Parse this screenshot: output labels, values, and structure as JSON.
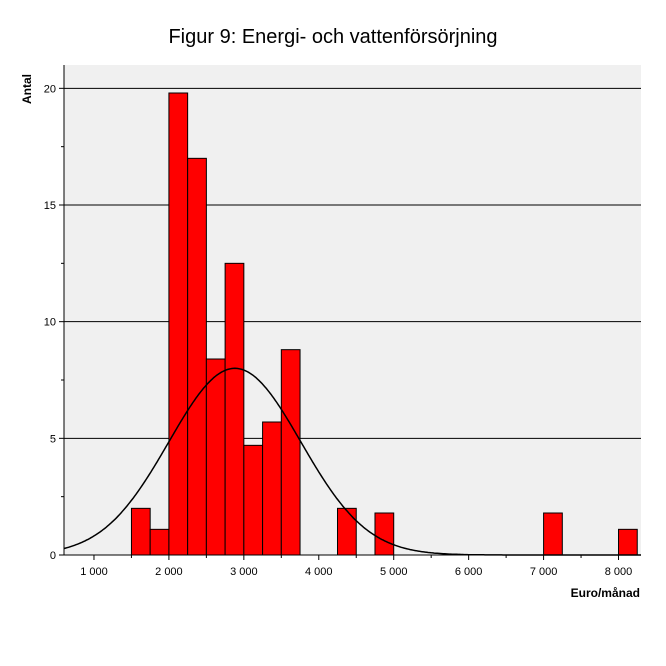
{
  "chart_data": {
    "type": "bar",
    "title": "Figur 9: Energi- och vattenförsörjning",
    "xlabel": "Euro/månad",
    "ylabel": "Antal",
    "xlim": [
      600,
      8300
    ],
    "ylim": [
      0,
      21
    ],
    "x_ticks": [
      1000,
      2000,
      3000,
      4000,
      5000,
      6000,
      7000,
      8000
    ],
    "x_tick_labels": [
      "1 000",
      "2 000",
      "3 000",
      "4 000",
      "5 000",
      "6 000",
      "7 000",
      "8 000"
    ],
    "y_ticks": [
      0,
      5,
      10,
      15,
      20
    ],
    "y_tick_labels": [
      "0",
      "5",
      "10",
      "15",
      "20"
    ],
    "bin_width": 250,
    "bins": [
      {
        "start": 1500,
        "count": 2
      },
      {
        "start": 1750,
        "count": 1.1
      },
      {
        "start": 2000,
        "count": 19.8
      },
      {
        "start": 2250,
        "count": 17
      },
      {
        "start": 2500,
        "count": 8.4
      },
      {
        "start": 2750,
        "count": 12.5
      },
      {
        "start": 3000,
        "count": 4.7
      },
      {
        "start": 3250,
        "count": 5.7
      },
      {
        "start": 3500,
        "count": 8.8
      },
      {
        "start": 4250,
        "count": 2
      },
      {
        "start": 4750,
        "count": 1.8
      },
      {
        "start": 7000,
        "count": 1.8
      },
      {
        "start": 8000,
        "count": 1.1
      }
    ],
    "normal_curve": {
      "mean": 2880,
      "sd": 880,
      "peak": 8.0
    },
    "grid": true,
    "colors": {
      "bar": "#ff0000",
      "plot_background": "#f0f0f0",
      "grid": "#000000",
      "curve": "#000000"
    }
  }
}
